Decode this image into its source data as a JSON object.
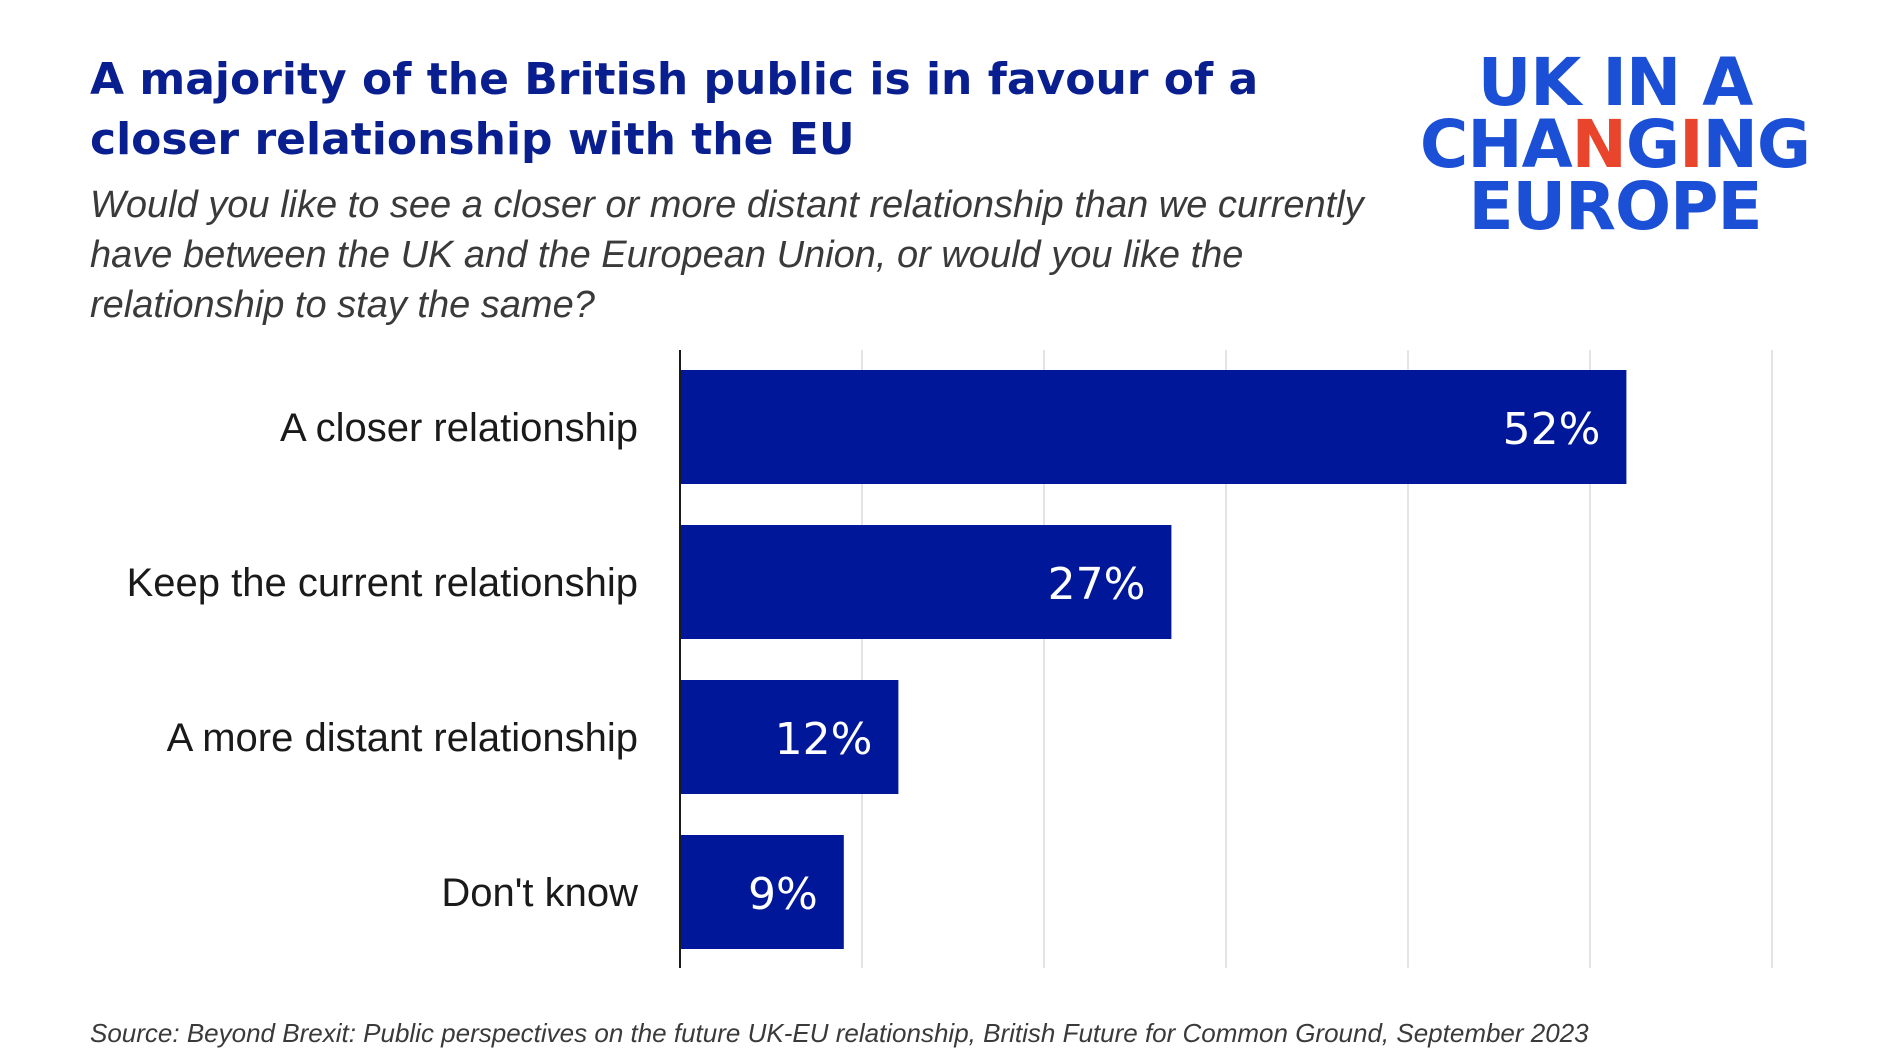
{
  "header": {
    "title": "A majority of the British public is in favour of a closer relationship with the EU",
    "subtitle": "Would you like to see a closer or more distant relationship than we currently have between the UK and the European Union, or would you like the relationship to stay the same?"
  },
  "logo": {
    "line1": "UK IN A",
    "line2_part1": "CHA",
    "line2_accent1": "N",
    "line2_part2": "G",
    "line2_accent2": "I",
    "line2_part3": "NG",
    "line3": "EUROPE"
  },
  "footer": {
    "source": "Source: Beyond Brexit: Public perspectives on the future UK-EU relationship, British Future for Common Ground, September 2023"
  },
  "colors": {
    "bar": "#00179a",
    "title": "#0a1f8f",
    "logo": "#1a4fd6",
    "logo_accent": "#e8452c",
    "grid": "#e4e4e4",
    "label_text": "#1a1a1a"
  },
  "chart_data": {
    "type": "bar",
    "orientation": "horizontal",
    "categories": [
      "A closer relationship",
      "Keep the current relationship",
      "A more distant relationship",
      "Don't know"
    ],
    "values": [
      52,
      27,
      12,
      9
    ],
    "data_labels": [
      "52%",
      "27%",
      "12%",
      "9%"
    ],
    "xlim": [
      0,
      60
    ],
    "grid": true,
    "legend": "none"
  }
}
